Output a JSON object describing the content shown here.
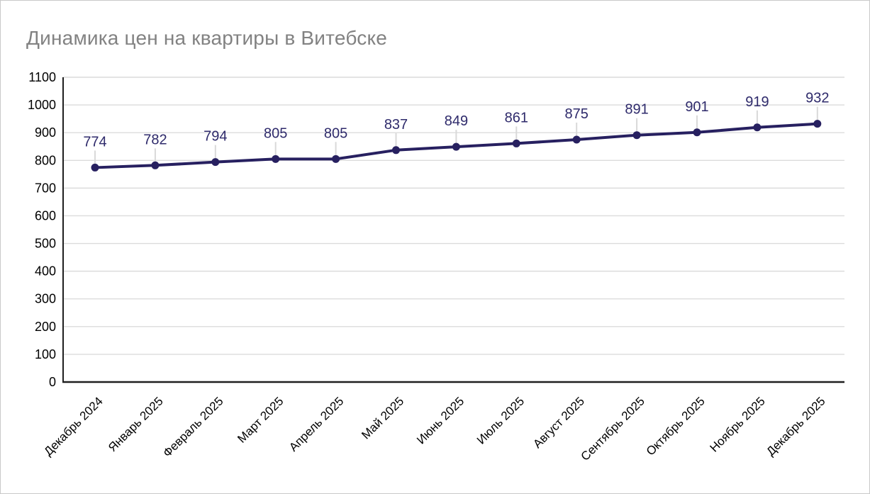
{
  "page": {
    "background": "#ffffff",
    "border_color": "#c9c9c9"
  },
  "chart_data": {
    "type": "line",
    "title": "Динамика цен на квартиры в Витебске",
    "categories": [
      "Декабрь 2024",
      "Январь 2025",
      "Февраль 2025",
      "Март 2025",
      "Апрель 2025",
      "Май 2025",
      "Июнь 2025",
      "Июль 2025",
      "Август 2025",
      "Сентябрь 2025",
      "Октябрь 2025",
      "Ноябрь 2025",
      "Декабрь 2025"
    ],
    "values": [
      774,
      782,
      794,
      805,
      805,
      837,
      849,
      861,
      875,
      891,
      901,
      919,
      932
    ],
    "point_labels": [
      "774",
      "782",
      "794",
      "805",
      "805",
      "837",
      "849",
      "861",
      "875",
      "891",
      "901",
      "919",
      "932"
    ],
    "xlabel": "",
    "ylabel": "",
    "ylim": [
      0,
      1100
    ],
    "yticks": [
      0,
      100,
      200,
      300,
      400,
      500,
      600,
      700,
      800,
      900,
      1000,
      1100
    ],
    "grid": "horizontal",
    "legend_position": "none",
    "x_tick_rotation_deg": 45,
    "colors": {
      "line": "#272060",
      "point": "#272060",
      "point_label": "#2e2a6b",
      "grid": "#dcdcdc",
      "axis": "#1f1f1f",
      "tick_label": "#000000",
      "title": "#828282",
      "connector": "#d9d9d9"
    }
  }
}
